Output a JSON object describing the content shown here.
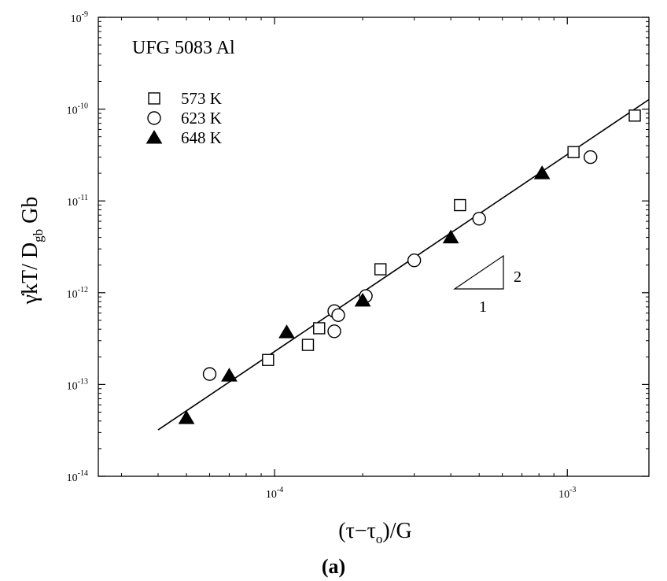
{
  "chart_data": {
    "type": "scatter",
    "title": "UFG 5083 Al",
    "xscale": "log",
    "yscale": "log",
    "xlim": [
      2.5e-05,
      0.0019
    ],
    "ylim": [
      1e-14,
      1e-09
    ],
    "xticks": [
      {
        "value": 0.0001,
        "base": "10",
        "exp": "-4"
      },
      {
        "value": 0.001,
        "base": "10",
        "exp": "-3"
      }
    ],
    "yticks": [
      {
        "value": 1e-14,
        "base": "10",
        "exp": "-14"
      },
      {
        "value": 1e-13,
        "base": "10",
        "exp": "-13"
      },
      {
        "value": 1e-12,
        "base": "10",
        "exp": "-12"
      },
      {
        "value": 1e-11,
        "base": "10",
        "exp": "-11"
      },
      {
        "value": 1e-10,
        "base": "10",
        "exp": "-10"
      },
      {
        "value": 1e-09,
        "base": "10",
        "exp": "-9"
      }
    ],
    "xlabel": {
      "pre": "(τ−τ",
      "sub": "o",
      "post": ")/G"
    },
    "ylabel": {
      "pre": "γ̇kT/ D",
      "sub": "gb",
      "post": " Gb"
    },
    "legend_position": "top-left",
    "series": [
      {
        "name": "573 K",
        "marker": "open-square",
        "points": [
          [
            9.5e-05,
            1.85e-13
          ],
          [
            0.00013,
            2.7e-13
          ],
          [
            0.000142,
            4.1e-13
          ],
          [
            0.00023,
            1.8e-12
          ],
          [
            0.00043,
            9e-12
          ],
          [
            0.00105,
            3.4e-11
          ],
          [
            0.0017,
            8.5e-11
          ]
        ]
      },
      {
        "name": "623 K",
        "marker": "open-circle",
        "points": [
          [
            6e-05,
            1.3e-13
          ],
          [
            0.00016,
            3.8e-13
          ],
          [
            0.00016,
            6.3e-13
          ],
          [
            0.000165,
            5.7e-13
          ],
          [
            0.000205,
            9.2e-13
          ],
          [
            0.0003,
            2.25e-12
          ],
          [
            0.0005,
            6.4e-12
          ],
          [
            0.0012,
            3e-11
          ]
        ]
      },
      {
        "name": "648 K",
        "marker": "filled-triangle",
        "points": [
          [
            5e-05,
            4.3e-14
          ],
          [
            7e-05,
            1.25e-13
          ],
          [
            0.00011,
            3.7e-13
          ],
          [
            0.0002,
            8.2e-13
          ],
          [
            0.0004,
            4e-12
          ],
          [
            0.00082,
            2e-11
          ]
        ]
      }
    ],
    "fit_line": {
      "from": [
        4e-05,
        3.2e-14
      ],
      "to": [
        0.0019,
        1.27e-10
      ]
    },
    "slope_triangle": {
      "rise_label": "2",
      "run_label": "1"
    }
  },
  "caption": "(a)"
}
